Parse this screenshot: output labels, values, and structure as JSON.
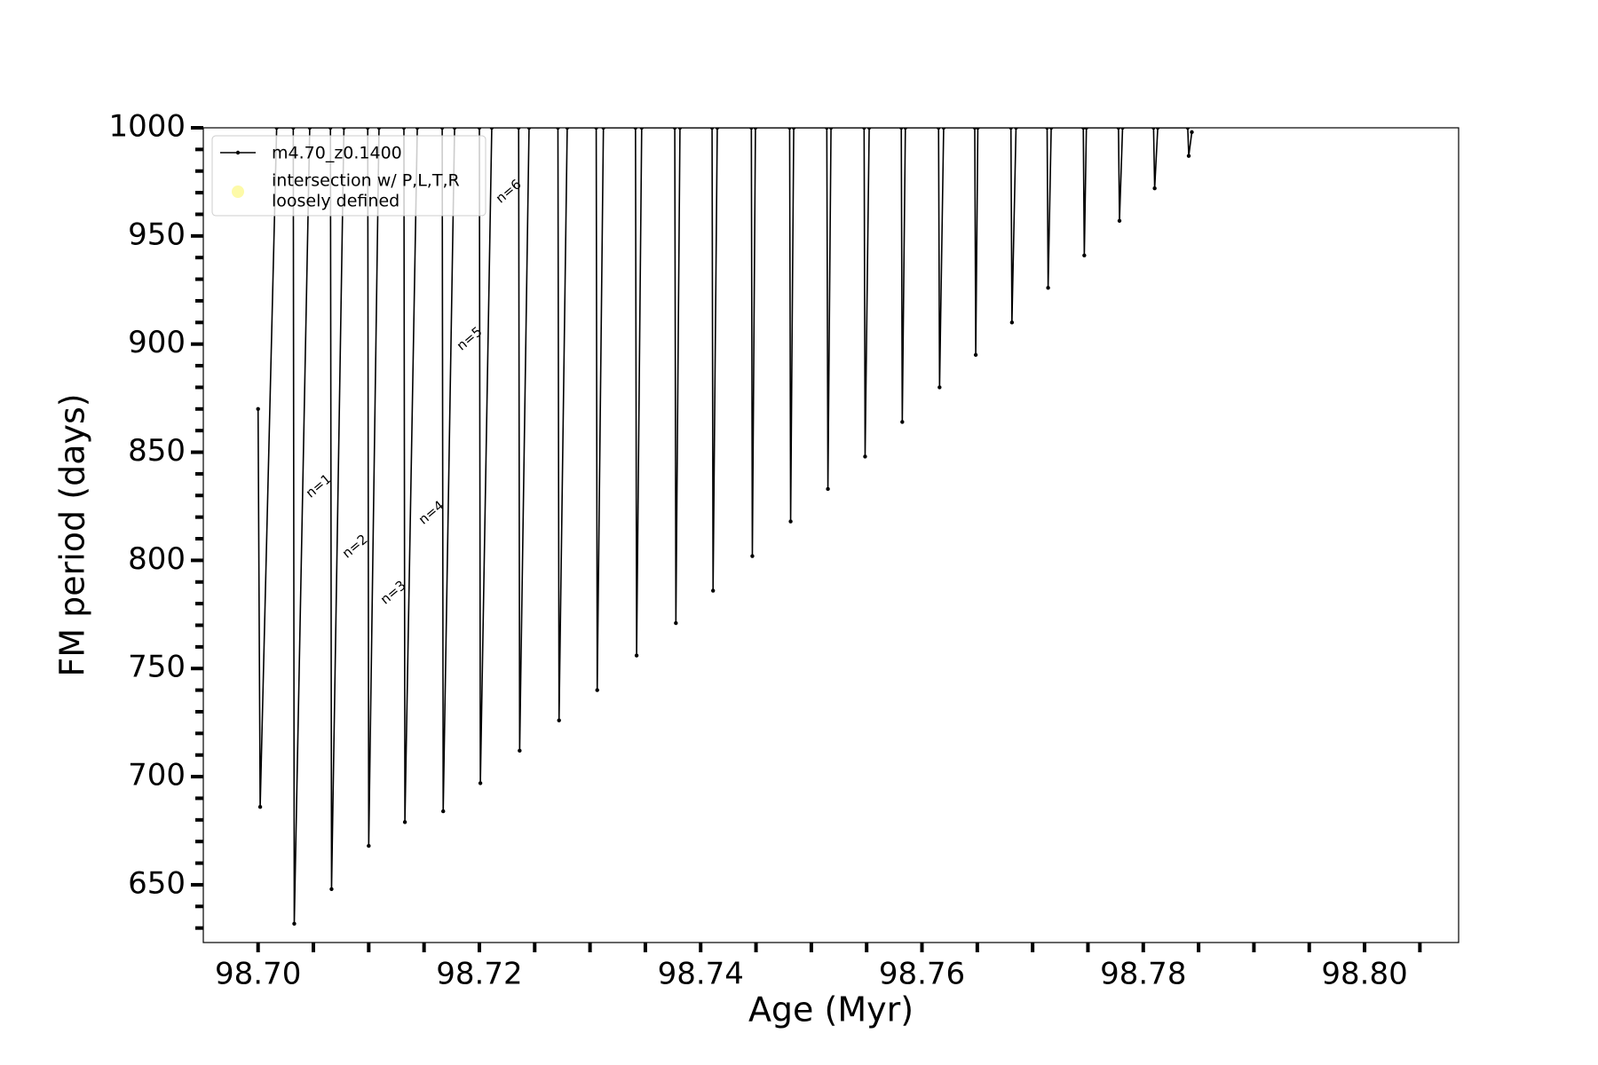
{
  "chart_data": {
    "type": "line",
    "x_label": "Age (Myr)",
    "y_label": "FM period (days)",
    "xlim": [
      98.69505,
      98.8085
    ],
    "ylim": [
      623.3,
      1000
    ],
    "xticks": [
      {
        "value": 98.7,
        "label": "98.70"
      },
      98.72,
      98.74,
      98.76,
      98.78,
      {
        "value": 98.8,
        "label": "98.80"
      }
    ],
    "x_minor_ticks": [
      98.705,
      98.71,
      98.715,
      98.725,
      98.73,
      98.735,
      98.745,
      98.75,
      98.755,
      98.765,
      98.77,
      98.775,
      98.785,
      98.79,
      98.795,
      98.805
    ],
    "yticks": [
      650,
      700,
      750,
      800,
      850,
      900,
      950,
      1000
    ],
    "y_minor_ticks": [
      630,
      640,
      660,
      670,
      680,
      690,
      710,
      720,
      730,
      740,
      760,
      770,
      780,
      790,
      810,
      820,
      830,
      840,
      860,
      870,
      880,
      890,
      910,
      920,
      930,
      940,
      960,
      970,
      980,
      990
    ],
    "legend": "upper left",
    "series": [
      {
        "name": "m4.70_z0.1400",
        "color": "#000000",
        "x": [
          98.7,
          98.70019,
          98.70168,
          98.70318,
          98.70327,
          98.70467,
          98.70654,
          98.70664,
          98.70776,
          98.70991,
          98.71,
          98.71093,
          98.71318,
          98.71327,
          98.71439,
          98.71664,
          98.71673,
          98.71776,
          98.72,
          98.72009,
          98.72112,
          98.72355,
          98.72364,
          98.72449,
          98.7271,
          98.7272,
          98.72794,
          98.73056,
          98.73065,
          98.73121,
          98.73411,
          98.73421,
          98.73467,
          98.73766,
          98.73776,
          98.73813,
          98.74103,
          98.74112,
          98.7415,
          98.74458,
          98.74467,
          98.74495,
          98.74804,
          98.74813,
          98.74841,
          98.7514,
          98.7515,
          98.75178,
          98.75477,
          98.75486,
          98.75523,
          98.75813,
          98.75822,
          98.7585,
          98.7615,
          98.76159,
          98.76196,
          98.76477,
          98.76486,
          98.76505,
          98.76804,
          98.76813,
          98.7685,
          98.77131,
          98.7714,
          98.77168,
          98.77458,
          98.77467,
          98.77486,
          98.77776,
          98.77785,
          98.77813,
          98.78093,
          98.78103,
          98.78131,
          98.78402,
          98.78411,
          98.78439
        ],
        "values": [
          870,
          686,
          1000,
          1000,
          632,
          1000,
          1000,
          648,
          1000,
          1000,
          668,
          1000,
          1000,
          679,
          1000,
          1000,
          684,
          1000,
          1000,
          697,
          1000,
          1000,
          712,
          1000,
          1000,
          726,
          1000,
          1000,
          740,
          1000,
          1000,
          756,
          1000,
          1000,
          771,
          1000,
          1000,
          786,
          1000,
          1000,
          802,
          1000,
          1000,
          818,
          1000,
          1000,
          833,
          1000,
          1000,
          848,
          1000,
          1000,
          864,
          1000,
          1000,
          880,
          1000,
          1000,
          895,
          1000,
          1000,
          910,
          1000,
          1000,
          926,
          1000,
          1000,
          941,
          1000,
          1000,
          957,
          1000,
          1000,
          972,
          1000,
          1000,
          987,
          998
        ]
      }
    ],
    "highlight": {
      "name": [
        "intersection w/ P,L,T,R",
        "loosely defined"
      ],
      "color": "#fdfaa8"
    },
    "annotations": [
      "n=1",
      "n=2",
      "n=3",
      "n=4",
      "n=5",
      "n=6"
    ]
  }
}
